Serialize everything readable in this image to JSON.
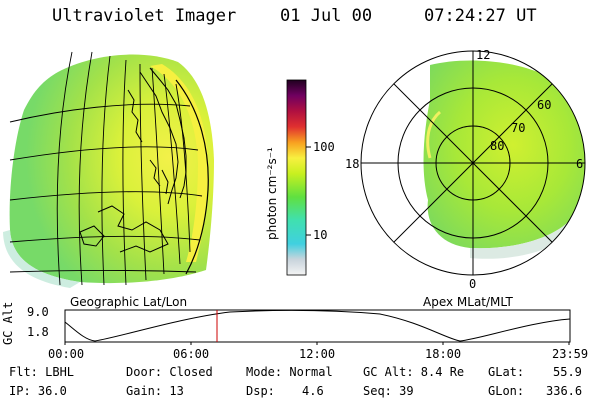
{
  "header": {
    "instrument": "Ultraviolet Imager",
    "date": "01 Jul 00",
    "time": "07:24:27 UT"
  },
  "colorbar": {
    "unit_label": "photon cm⁻²s⁻¹",
    "ticks": [
      "100",
      "10"
    ],
    "scale": "log"
  },
  "left_panel": {
    "projection_label": "Geographic Lat/Lon"
  },
  "right_panel": {
    "projection_label": "Apex MLat/MLT",
    "mlt_labels": {
      "top": "12",
      "left": "18",
      "right": "6",
      "bottom": "0"
    },
    "lat_labels": [
      "60",
      "70",
      "80"
    ]
  },
  "altitude_plot": {
    "ylabel": "GC Alt",
    "yticks": [
      "9.0",
      "1.8"
    ],
    "xticks": [
      "00:00",
      "06:00",
      "12:00",
      "18:00",
      "23:59"
    ],
    "marker_time": "07:24:27",
    "marker_color": "#cc0000"
  },
  "status": {
    "row1": {
      "flt": "Flt: LBHL",
      "door": "Door: Closed",
      "mode": "Mode: Normal",
      "gc_alt": "GC Alt: 8.4 Re",
      "glat_label": "GLat:",
      "glat_value": "55.9"
    },
    "row2": {
      "ip": "IP: 36.0",
      "gain": "Gain: 13",
      "dsp_label": "Dsp:",
      "dsp_value": "4.6",
      "seq": "Seq: 39",
      "glon_label": "GLon:",
      "glon_value": "336.6"
    }
  }
}
